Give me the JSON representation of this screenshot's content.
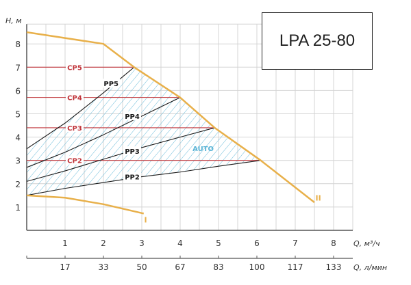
{
  "model_title": "LPA 25-80",
  "chart_data": {
    "type": "line",
    "ylabel": "H, м",
    "xlabel": "Q, м³/ч",
    "xlabel2": "Q, л/мин",
    "xlim": [
      0,
      8.5
    ],
    "ylim": [
      0,
      8.85
    ],
    "grid": true,
    "x_ticks": [
      1,
      2,
      3,
      4,
      5,
      6,
      7,
      8
    ],
    "x_ticks_labels": [
      "1",
      "2",
      "3",
      "4",
      "5",
      "6",
      "7",
      "8"
    ],
    "x2_ticks_labels": [
      "17",
      "33",
      "50",
      "67",
      "83",
      "100",
      "117",
      "133"
    ],
    "y_ticks": [
      1,
      2,
      3,
      4,
      5,
      6,
      7,
      8
    ],
    "y_ticks_labels": [
      "1",
      "2",
      "3",
      "4",
      "5",
      "6",
      "7",
      "8"
    ],
    "colors": {
      "max_curve": "#e8b04a",
      "cp": "#c0343a",
      "pp": "#1a1a1a",
      "auto": "#5ab4d6",
      "grid": "#d4d4d4"
    },
    "series": [
      {
        "name": "II",
        "kind": "max",
        "points": [
          [
            0,
            8.5
          ],
          [
            2,
            8
          ],
          [
            2.8,
            7
          ],
          [
            4,
            5.7
          ],
          [
            4.9,
            4.4
          ],
          [
            6.1,
            3
          ],
          [
            7.5,
            1.2
          ]
        ]
      },
      {
        "name": "I",
        "kind": "min",
        "points": [
          [
            0,
            1.5
          ],
          [
            1,
            1.4
          ],
          [
            2,
            1.12
          ],
          [
            3.05,
            0.72
          ]
        ]
      },
      {
        "name": "CP5",
        "kind": "cp",
        "points": [
          [
            0,
            7
          ],
          [
            2.8,
            7
          ]
        ]
      },
      {
        "name": "CP4",
        "kind": "cp",
        "points": [
          [
            0,
            5.7
          ],
          [
            4,
            5.7
          ]
        ]
      },
      {
        "name": "CP3",
        "kind": "cp",
        "points": [
          [
            0,
            4.4
          ],
          [
            4.9,
            4.4
          ]
        ]
      },
      {
        "name": "CP2",
        "kind": "cp",
        "points": [
          [
            0,
            3
          ],
          [
            6.1,
            3
          ]
        ]
      },
      {
        "name": "PP5",
        "kind": "pp",
        "points": [
          [
            0,
            3.5
          ],
          [
            1,
            4.6
          ],
          [
            2,
            5.9
          ],
          [
            2.8,
            7
          ]
        ]
      },
      {
        "name": "PP4",
        "kind": "pp",
        "points": [
          [
            0,
            2.7
          ],
          [
            1,
            3.35
          ],
          [
            2,
            4.1
          ],
          [
            3,
            4.9
          ],
          [
            4,
            5.7
          ]
        ]
      },
      {
        "name": "PP3",
        "kind": "pp",
        "points": [
          [
            0,
            2.1
          ],
          [
            1,
            2.55
          ],
          [
            2,
            3.05
          ],
          [
            3,
            3.55
          ],
          [
            4,
            4.0
          ],
          [
            4.9,
            4.4
          ]
        ]
      },
      {
        "name": "PP2",
        "kind": "pp",
        "points": [
          [
            0,
            1.5
          ],
          [
            1,
            1.8
          ],
          [
            2,
            2.05
          ],
          [
            3,
            2.3
          ],
          [
            4,
            2.5
          ],
          [
            5,
            2.75
          ],
          [
            6.1,
            3
          ]
        ]
      }
    ],
    "annotations": [
      {
        "text": "AUTO",
        "x": 4.6,
        "y": 3.4
      }
    ],
    "series_labels": [
      {
        "text": "CP5",
        "x": 1.25,
        "y": 7
      },
      {
        "text": "CP4",
        "x": 1.25,
        "y": 5.7
      },
      {
        "text": "CP3",
        "x": 1.25,
        "y": 4.4
      },
      {
        "text": "CP2",
        "x": 1.25,
        "y": 3
      },
      {
        "text": "PP5",
        "x": 2.2,
        "y": 6.3
      },
      {
        "text": "PP4",
        "x": 2.75,
        "y": 4.9
      },
      {
        "text": "PP3",
        "x": 2.75,
        "y": 3.4
      },
      {
        "text": "PP2",
        "x": 2.75,
        "y": 2.3
      },
      {
        "text": "II",
        "x": 7.6,
        "y": 1.4
      },
      {
        "text": "I",
        "x": 3.1,
        "y": 0.45
      }
    ]
  }
}
